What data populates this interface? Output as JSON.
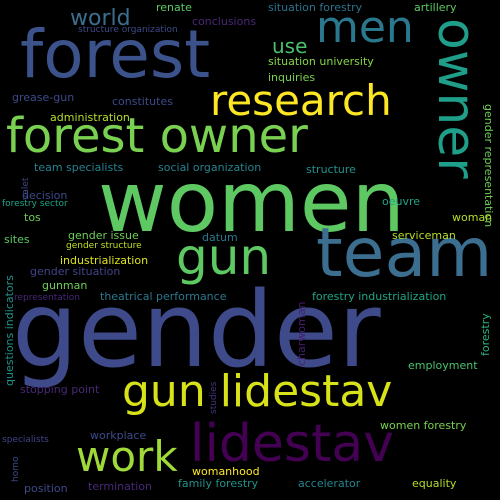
{
  "words": [
    {
      "text": "gender",
      "color": "#3e4a89"
    },
    {
      "text": "women",
      "color": "#5ec962"
    },
    {
      "text": "forest",
      "color": "#3b528b"
    },
    {
      "text": "team",
      "color": "#3b6e8f"
    },
    {
      "text": "forest owner",
      "color": "#7ad151"
    },
    {
      "text": "owner",
      "color": "#1f9e89"
    },
    {
      "text": "research",
      "color": "#fde725"
    },
    {
      "text": "gun lidestav",
      "color": "#d8e219"
    },
    {
      "text": "lidestav",
      "color": "#440154"
    },
    {
      "text": "gun",
      "color": "#5ec962"
    },
    {
      "text": "men",
      "color": "#2a788e"
    },
    {
      "text": "work",
      "color": "#a0da39"
    },
    {
      "text": "world",
      "color": "#3b6e8f"
    },
    {
      "text": "use",
      "color": "#4ac16d"
    },
    {
      "text": "renate",
      "color": "#5ec962"
    },
    {
      "text": "conclusions",
      "color": "#482878"
    },
    {
      "text": "situation forestry",
      "color": "#2c728e"
    },
    {
      "text": "artillery",
      "color": "#5ec962"
    },
    {
      "text": "structure organization",
      "color": "#3e4a89"
    },
    {
      "text": "situation university",
      "color": "#86d549"
    },
    {
      "text": "inquiries",
      "color": "#7ad151"
    },
    {
      "text": "grease-gun",
      "color": "#3e4a89"
    },
    {
      "text": "constitutes",
      "color": "#3e4a89"
    },
    {
      "text": "administration",
      "color": "#b5de2b"
    },
    {
      "text": "gender representation",
      "color": "#6ece58"
    },
    {
      "text": "valet",
      "color": "#414487"
    },
    {
      "text": "team specialists",
      "color": "#26828e"
    },
    {
      "text": "social organization",
      "color": "#26828e"
    },
    {
      "text": "structure",
      "color": "#21918c"
    },
    {
      "text": "decision",
      "color": "#3e4a89"
    },
    {
      "text": "forestry sector",
      "color": "#20a486"
    },
    {
      "text": "oeuvre",
      "color": "#20a486"
    },
    {
      "text": "tos",
      "color": "#6ece58"
    },
    {
      "text": "woman",
      "color": "#b5de2b"
    },
    {
      "text": "gender issue",
      "color": "#6ece58"
    },
    {
      "text": "gender structure",
      "color": "#c2df23"
    },
    {
      "text": "sites",
      "color": "#5ec962"
    },
    {
      "text": "datum",
      "color": "#2a788e"
    },
    {
      "text": "serviceman",
      "color": "#b5de2b"
    },
    {
      "text": "industrialization",
      "color": "#dde318"
    },
    {
      "text": "gender situation",
      "color": "#414487"
    },
    {
      "text": "gunman",
      "color": "#6ece58"
    },
    {
      "text": "questions indicators",
      "color": "#21918c"
    },
    {
      "text": "representation",
      "color": "#482878"
    },
    {
      "text": "theatrical performance",
      "color": "#2a788e"
    },
    {
      "text": "forestry industrialization",
      "color": "#20a486"
    },
    {
      "text": "charwoman",
      "color": "#481f70"
    },
    {
      "text": "forestry",
      "color": "#2fb47c"
    },
    {
      "text": "employment",
      "color": "#4ac16d"
    },
    {
      "text": "studies",
      "color": "#46337e"
    },
    {
      "text": "stopping point",
      "color": "#482878"
    },
    {
      "text": "women forestry",
      "color": "#7ad151"
    },
    {
      "text": "specialists",
      "color": "#414487"
    },
    {
      "text": "workplace",
      "color": "#3e4a89"
    },
    {
      "text": "homo",
      "color": "#3e4a89"
    },
    {
      "text": "womanhood",
      "color": "#fde725"
    },
    {
      "text": "position",
      "color": "#3e4a89"
    },
    {
      "text": "termination",
      "color": "#482878"
    },
    {
      "text": "family forestry",
      "color": "#21918c"
    },
    {
      "text": "accelerator",
      "color": "#26828e"
    },
    {
      "text": "equality",
      "color": "#b5de2b"
    }
  ]
}
